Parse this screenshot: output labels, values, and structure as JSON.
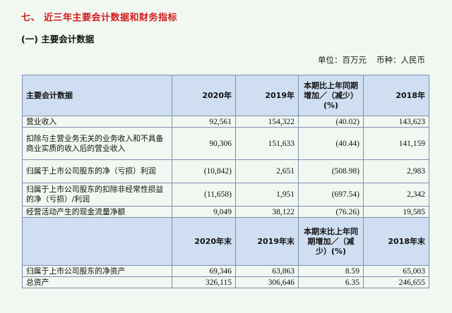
{
  "section_title": "七、 近三年主要会计数据和财务指标",
  "sub_title": "(一) 主要会计数据",
  "unit": {
    "unit_label": "单位：百万元",
    "currency_label": "币种：人民币"
  },
  "table1": {
    "headers": [
      "主要会计数据",
      "2020年",
      "2019年",
      "本期比上年同期增加／（减少）(%)",
      "2018年"
    ],
    "rows": [
      {
        "label": "营业收入",
        "c2020": "92,561",
        "c2019": "154,322",
        "change": "(40.02)",
        "c2018": "143,623"
      },
      {
        "label": "扣除与主营业务无关的业务收入和不具备商业实质的收入后的营业收入",
        "c2020": "90,306",
        "c2019": "151,633",
        "change": "(40.44)",
        "c2018": "141,159"
      },
      {
        "label": "归属于上市公司股东的净（亏损）利润",
        "c2020": "(10,842)",
        "c2019": "2,651",
        "change": "(508.98)",
        "c2018": "2,983"
      },
      {
        "label": "归属于上市公司股东的扣除非经常性损益的净（亏损）/利润",
        "c2020": "(11,658)",
        "c2019": "1,951",
        "change": "(697.54)",
        "c2018": "2,342"
      },
      {
        "label": "经营活动产生的现金流量净额",
        "c2020": "9,049",
        "c2019": "38,122",
        "change": "(76.26)",
        "c2018": "19,585"
      }
    ]
  },
  "table2": {
    "headers": [
      "",
      "2020年末",
      "2019年末",
      "本期末比上年同期增加／（减少）(%)",
      "2018年末"
    ],
    "rows": [
      {
        "label": "归属于上市公司股东的净资产",
        "c2020": "69,346",
        "c2019": "63,863",
        "change": "8.59",
        "c2018": "65,003"
      },
      {
        "label": "总资产",
        "c2020": "326,115",
        "c2019": "306,646",
        "change": "6.35",
        "c2018": "246,655"
      }
    ]
  }
}
